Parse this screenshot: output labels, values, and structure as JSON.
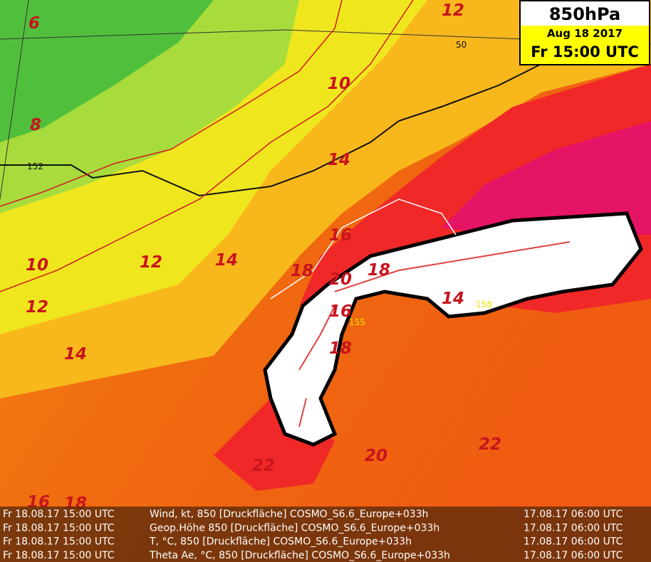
{
  "header": {
    "level": "850hPa",
    "date": "Aug 18 2017",
    "time": "Fr 15:00 UTC"
  },
  "contour_labels": [
    6,
    12,
    10,
    8,
    14,
    10,
    12,
    14,
    12,
    14,
    16,
    18,
    20,
    18,
    16,
    18,
    14,
    22,
    20,
    22,
    16,
    18
  ],
  "height_labels": [
    50,
    152,
    155,
    158
  ],
  "footer": [
    [
      "Fr 18.08.17 15:00 UTC",
      "Wind, kt, 850 [Druckfläche] COSMO_S6.6_Europe+033h",
      "17.08.17 06:00 UTC"
    ],
    [
      "Fr 18.08.17 15:00 UTC",
      "Geop.Höhe 850 [Druckfläche] COSMO_S6.6_Europe+033h",
      "17.08.17 06:00 UTC"
    ],
    [
      "Fr 18.08.17 15:00 UTC",
      "T, °C, 850 [Druckfläche] COSMO_S6.6_Europe+033h",
      "17.08.17 06:00 UTC"
    ],
    [
      "Fr 18.08.17 15:00 UTC",
      "Theta Ae, °C, 850 [Druckfläche] COSMO_S6.6_Europe+033h",
      "17.08.17 06:00 UTC"
    ]
  ]
}
